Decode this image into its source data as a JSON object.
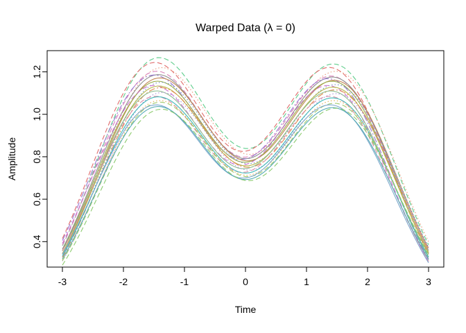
{
  "chart_data": {
    "type": "line",
    "title": "Warped Data (λ = 0)",
    "xlabel": "Time",
    "ylabel": "Amplitude",
    "xlim": [
      -3.25,
      3.25
    ],
    "ylim": [
      0.28,
      1.3
    ],
    "x_ticks": [
      -3,
      -2,
      -1,
      0,
      1,
      2,
      3
    ],
    "y_ticks": [
      0.4,
      0.6,
      0.8,
      1.0,
      1.2
    ],
    "grid": false,
    "legend": "none",
    "background": "#ffffff",
    "axis_color": "#000000",
    "peak_centers": [
      -1.47,
      1.47
    ],
    "dip_value_range": [
      0.66,
      0.78
    ],
    "peak_value_range": [
      1.02,
      1.26
    ],
    "end_value_range": [
      0.32,
      0.41
    ],
    "model": "y = amp * (1 + tilt*x/3) * (exp(-(x-shift-1.47)^2/2) + exp(-(x-shift+1.47)^2/2))",
    "series": [
      {
        "name": "green-dashed-top",
        "amp": 1.235,
        "shift": 0.02,
        "tilt": -0.025,
        "color": "#5ECD8B",
        "linetype": "dashed"
      },
      {
        "name": "red-dashed",
        "amp": 1.215,
        "shift": -0.05,
        "tilt": -0.02,
        "color": "#E06B6B",
        "linetype": "dashed"
      },
      {
        "name": "salmon-dotted",
        "amp": 1.195,
        "shift": 0.06,
        "tilt": -0.015,
        "color": "#E89A7A",
        "linetype": "dotted"
      },
      {
        "name": "pink-dashed",
        "amp": 1.175,
        "shift": -0.02,
        "tilt": -0.02,
        "color": "#D981B9",
        "linetype": "dashed"
      },
      {
        "name": "gray-solid",
        "amp": 1.165,
        "shift": 0.0,
        "tilt": -0.01,
        "color": "#8E8E8E",
        "linetype": "solid"
      },
      {
        "name": "purple-dashdot",
        "amp": 1.16,
        "shift": -0.07,
        "tilt": -0.015,
        "color": "#9A79D1",
        "linetype": "dashdot"
      },
      {
        "name": "brown-solid",
        "amp": 1.15,
        "shift": 0.03,
        "tilt": -0.01,
        "color": "#C08552",
        "linetype": "solid"
      },
      {
        "name": "olive-solid",
        "amp": 1.14,
        "shift": -0.01,
        "tilt": 0,
        "color": "#9AAE4A",
        "linetype": "solid"
      },
      {
        "name": "blue-dotted",
        "amp": 1.13,
        "shift": 0.05,
        "tilt": -0.01,
        "color": "#6C8EBF",
        "linetype": "dotted"
      },
      {
        "name": "magenta-dashed",
        "amp": 1.12,
        "shift": -0.08,
        "tilt": 0,
        "color": "#CC6FCC",
        "linetype": "dashed"
      },
      {
        "name": "yellow-solid",
        "amp": 1.115,
        "shift": 0.01,
        "tilt": -0.005,
        "color": "#B8B84A",
        "linetype": "solid"
      },
      {
        "name": "orange-dashdot",
        "amp": 1.105,
        "shift": 0.04,
        "tilt": -0.01,
        "color": "#E08A4E",
        "linetype": "dashdot"
      },
      {
        "name": "green-solid",
        "amp": 1.095,
        "shift": -0.03,
        "tilt": 0,
        "color": "#8FBC8F",
        "linetype": "solid"
      },
      {
        "name": "violet-dotted",
        "amp": 1.085,
        "shift": 0.06,
        "tilt": -0.005,
        "color": "#A98FD9",
        "linetype": "dotted"
      },
      {
        "name": "rose-dashed",
        "amp": 1.07,
        "shift": -0.05,
        "tilt": 0,
        "color": "#D98FA8",
        "linetype": "dashed"
      },
      {
        "name": "cyan-solid",
        "amp": 1.065,
        "shift": 0.0,
        "tilt": -0.005,
        "color": "#3FB8B8",
        "linetype": "solid"
      },
      {
        "name": "gold-dotted",
        "amp": 1.05,
        "shift": 0.02,
        "tilt": 0,
        "color": "#E0B050",
        "linetype": "dotted"
      },
      {
        "name": "yellowgreen-dashed",
        "amp": 1.04,
        "shift": 0.03,
        "tilt": -0.005,
        "color": "#9FC96A",
        "linetype": "dashed"
      },
      {
        "name": "lightblue-solid",
        "amp": 1.03,
        "shift": -0.04,
        "tilt": 0,
        "color": "#7BA7CC",
        "linetype": "solid"
      },
      {
        "name": "teal-solid",
        "amp": 1.02,
        "shift": 0.0,
        "tilt": -0.005,
        "color": "#55AAB4",
        "linetype": "solid"
      },
      {
        "name": "lightgreen-dashed-bottom",
        "amp": 1.012,
        "shift": 0.05,
        "tilt": 0.005,
        "color": "#8CCB6E",
        "linetype": "dashed"
      }
    ]
  }
}
